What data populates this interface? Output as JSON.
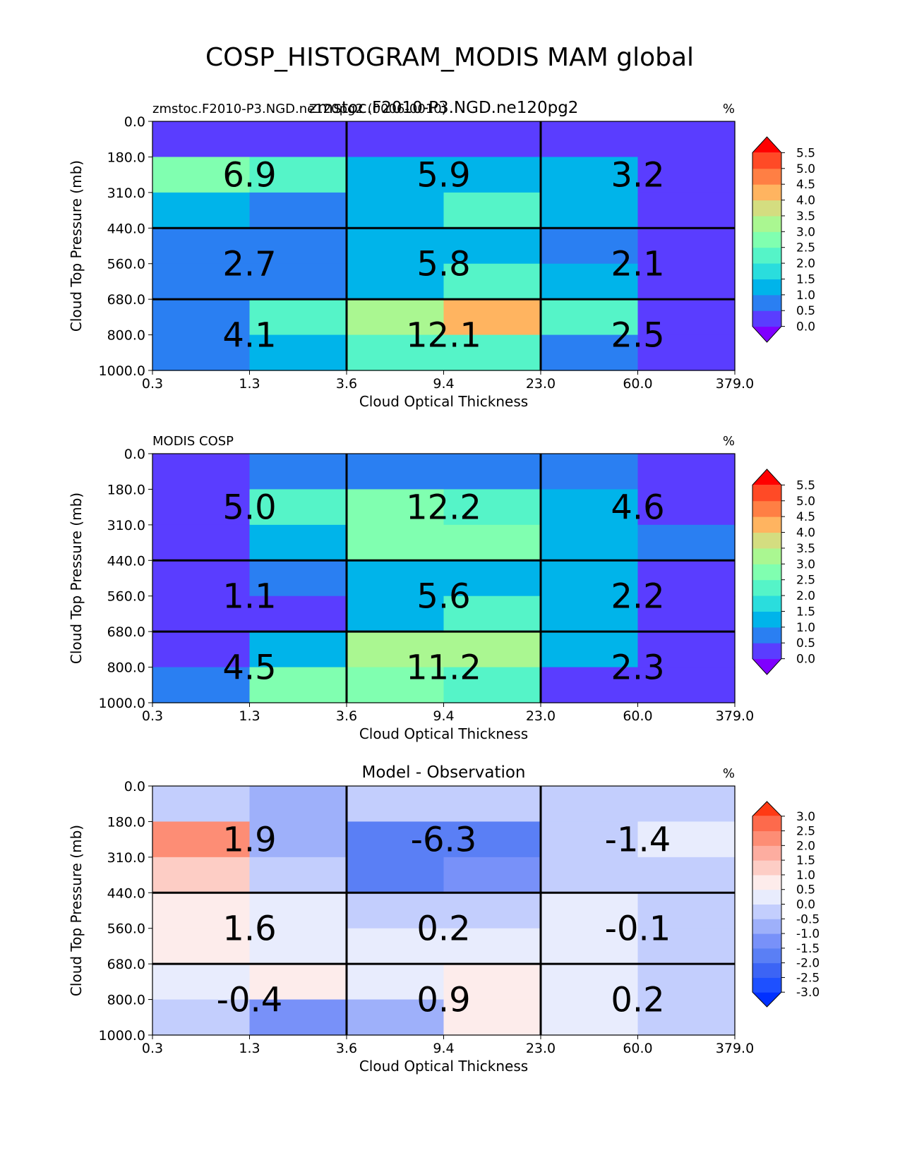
{
  "figure": {
    "title": "COSP_HISTOGRAM_MODIS MAM global"
  },
  "chart_data": [
    {
      "type": "heatmap",
      "title": "zmstoc.F2010-P3.NGD.ne120pg2",
      "left_title": "zmstoc.F2010-P3.NGD.ne120pg2 (0006-0010)",
      "units": "%",
      "xlabel": "Cloud Optical Thickness",
      "ylabel": "Cloud Top Pressure (mb)",
      "x_tick_labels": [
        "0.3",
        "1.3",
        "3.6",
        "9.4",
        "23.0",
        "60.0",
        "379.0"
      ],
      "y_tick_labels": [
        "0.0",
        "180.0",
        "310.0",
        "440.0",
        "560.0",
        "680.0",
        "800.0",
        "1000.0"
      ],
      "cells": [
        [
          0.2,
          0.2,
          0.2,
          0.2,
          0.2,
          0.2
        ],
        [
          2.7,
          2.3,
          1.4,
          1.4,
          1.4,
          0.4
        ],
        [
          1.3,
          0.9,
          1.3,
          2.0,
          1.3,
          0.4
        ],
        [
          0.9,
          0.9,
          1.4,
          1.4,
          0.9,
          0.4
        ],
        [
          0.9,
          0.9,
          1.3,
          2.0,
          1.3,
          0.4
        ],
        [
          0.9,
          2.0,
          3.4,
          4.2,
          2.0,
          0.4
        ],
        [
          0.9,
          1.3,
          2.3,
          2.3,
          0.9,
          0.4
        ]
      ],
      "group_labels": [
        [
          "6.9",
          "5.9",
          "3.2"
        ],
        [
          "2.7",
          "5.8",
          "2.1"
        ],
        [
          "4.1",
          "12.1",
          "2.5"
        ]
      ],
      "colorbar": {
        "ticks": [
          "0.0",
          "0.5",
          "1.0",
          "1.5",
          "2.0",
          "2.5",
          "3.0",
          "3.5",
          "4.0",
          "4.5",
          "5.0",
          "5.5"
        ],
        "levels": [
          0.0,
          0.5,
          1.0,
          1.5,
          2.0,
          2.5,
          3.0,
          3.5,
          4.0,
          4.5,
          5.0,
          5.5
        ],
        "colors": [
          "#7f00ff",
          "#5a3dff",
          "#2a7ff2",
          "#00b4ea",
          "#2adddd",
          "#55f4c8",
          "#80ffb0",
          "#aaf791",
          "#d4dd80",
          "#ffb460",
          "#ff7f44",
          "#ff4a26",
          "#ff0000"
        ]
      }
    },
    {
      "type": "heatmap",
      "left_title": "MODIS COSP",
      "units": "%",
      "xlabel": "Cloud Optical Thickness",
      "ylabel": "Cloud Top Pressure (mb)",
      "x_tick_labels": [
        "0.3",
        "1.3",
        "3.6",
        "9.4",
        "23.0",
        "60.0",
        "379.0"
      ],
      "y_tick_labels": [
        "0.0",
        "180.0",
        "310.0",
        "440.0",
        "560.0",
        "680.0",
        "800.0",
        "1000.0"
      ],
      "cells": [
        [
          0.4,
          0.9,
          0.9,
          0.9,
          0.9,
          0.4
        ],
        [
          0.4,
          2.3,
          2.8,
          2.3,
          1.3,
          0.4
        ],
        [
          0.4,
          1.3,
          2.8,
          2.8,
          1.3,
          0.9
        ],
        [
          0.4,
          0.9,
          1.3,
          1.3,
          1.3,
          0.4
        ],
        [
          0.4,
          0.4,
          1.3,
          2.0,
          1.3,
          0.4
        ],
        [
          0.4,
          1.3,
          3.3,
          3.3,
          1.3,
          0.4
        ],
        [
          0.9,
          2.8,
          2.8,
          2.0,
          0.4,
          0.4
        ]
      ],
      "group_labels": [
        [
          "5.0",
          "12.2",
          "4.6"
        ],
        [
          "1.1",
          "5.6",
          "2.2"
        ],
        [
          "4.5",
          "11.2",
          "2.3"
        ]
      ],
      "colorbar": {
        "ticks": [
          "0.0",
          "0.5",
          "1.0",
          "1.5",
          "2.0",
          "2.5",
          "3.0",
          "3.5",
          "4.0",
          "4.5",
          "5.0",
          "5.5"
        ],
        "levels": [
          0.0,
          0.5,
          1.0,
          1.5,
          2.0,
          2.5,
          3.0,
          3.5,
          4.0,
          4.5,
          5.0,
          5.5
        ],
        "colors": [
          "#7f00ff",
          "#5a3dff",
          "#2a7ff2",
          "#00b4ea",
          "#2adddd",
          "#55f4c8",
          "#80ffb0",
          "#aaf791",
          "#d4dd80",
          "#ffb460",
          "#ff7f44",
          "#ff4a26",
          "#ff0000"
        ]
      }
    },
    {
      "type": "heatmap",
      "title": "Model - Observation",
      "units": "%",
      "xlabel": "Cloud Optical Thickness",
      "ylabel": "Cloud Top Pressure (mb)",
      "x_tick_labels": [
        "0.3",
        "1.3",
        "3.6",
        "9.4",
        "23.0",
        "60.0",
        "379.0"
      ],
      "y_tick_labels": [
        "0.0",
        "180.0",
        "310.0",
        "440.0",
        "560.0",
        "680.0",
        "800.0",
        "1000.0"
      ],
      "cells": [
        [
          -0.2,
          -0.7,
          -0.2,
          -0.2,
          -0.2,
          -0.2
        ],
        [
          2.2,
          -0.7,
          -1.7,
          -1.7,
          -0.2,
          0.2
        ],
        [
          1.2,
          -0.2,
          -1.7,
          -1.2,
          -0.2,
          -0.2
        ],
        [
          0.7,
          0.2,
          -0.2,
          -0.2,
          0.2,
          -0.2
        ],
        [
          0.7,
          0.2,
          0.2,
          0.2,
          0.2,
          -0.2
        ],
        [
          0.2,
          0.7,
          0.2,
          0.7,
          0.2,
          -0.2
        ],
        [
          -0.2,
          -1.2,
          -0.7,
          0.7,
          0.2,
          -0.2
        ]
      ],
      "group_labels": [
        [
          "1.9",
          "-6.3",
          "-1.4"
        ],
        [
          "1.6",
          "0.2",
          "-0.1"
        ],
        [
          "-0.4",
          "0.9",
          "0.2"
        ]
      ],
      "colorbar": {
        "ticks": [
          "-3.0",
          "-2.5",
          "-2.0",
          "-1.5",
          "-1.0",
          "-0.5",
          "0.0",
          "0.5",
          "1.0",
          "1.5",
          "2.0",
          "2.5",
          "3.0"
        ],
        "levels": [
          -3.0,
          -2.5,
          -2.0,
          -1.5,
          -1.0,
          -0.5,
          0.0,
          0.5,
          1.0,
          1.5,
          2.0,
          2.5,
          3.0
        ],
        "colors": [
          "#0030ff",
          "#1e50ff",
          "#3c64f5",
          "#5a7ff5",
          "#7891f9",
          "#9eb0fa",
          "#c3cefd",
          "#e8ecfd",
          "#fdeceb",
          "#fdcdc5",
          "#fdada0",
          "#fd8d75",
          "#fd6a4c",
          "#ff3a14"
        ]
      }
    }
  ]
}
